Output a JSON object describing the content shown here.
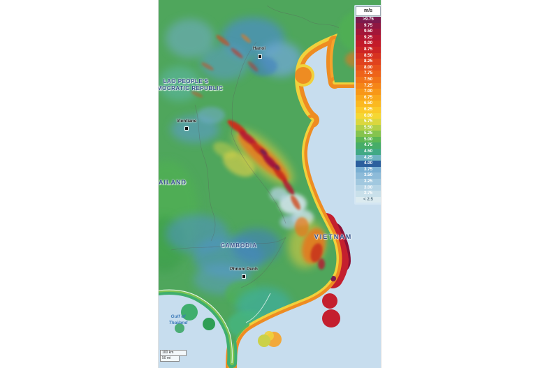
{
  "map": {
    "labels": {
      "lao_line1": "LAO PEOPLE'S",
      "lao_line2": "DEMOCRATIC REPUBLIC",
      "thailand": "THAILAND",
      "cambodia": "CAMBODIA",
      "vietnam": "VIETNAM",
      "gulf_line1": "Gulf of",
      "gulf_line2": "Thailand"
    },
    "cities": [
      "Hanoi",
      "Vientiane",
      "Phnom Penh"
    ],
    "scale_km": "100 km",
    "scale_mi": "50 mi",
    "sea_color": "#c7ddee",
    "land_base_color": "#4fa65c"
  },
  "legend": {
    "title": "m/s",
    "selected_value": "4.00",
    "entries": [
      {
        "label": ">9.75",
        "color": "#7a1a4d",
        "text_color": "#ffffff"
      },
      {
        "label": "9.75",
        "color": "#8f1742",
        "text_color": "#ffffff"
      },
      {
        "label": "9.50",
        "color": "#a31639",
        "text_color": "#ffffff"
      },
      {
        "label": "9.25",
        "color": "#b51731",
        "text_color": "#ffffff"
      },
      {
        "label": "9.00",
        "color": "#c31b2a",
        "text_color": "#ffffff"
      },
      {
        "label": "8.75",
        "color": "#cd2424",
        "text_color": "#ffffff"
      },
      {
        "label": "8.50",
        "color": "#d73220",
        "text_color": "#ffffff"
      },
      {
        "label": "8.25",
        "color": "#e0421d",
        "text_color": "#ffffff"
      },
      {
        "label": "8.00",
        "color": "#e8521b",
        "text_color": "#ffffff"
      },
      {
        "label": "7.75",
        "color": "#ee631a",
        "text_color": "#ffffff"
      },
      {
        "label": "7.50",
        "color": "#f27418",
        "text_color": "#ffffff"
      },
      {
        "label": "7.25",
        "color": "#f58517",
        "text_color": "#ffffff"
      },
      {
        "label": "7.00",
        "color": "#f89717",
        "text_color": "#ffffff"
      },
      {
        "label": "6.75",
        "color": "#faa81b",
        "text_color": "#ffffff"
      },
      {
        "label": "6.50",
        "color": "#fbb921",
        "text_color": "#ffffff"
      },
      {
        "label": "6.25",
        "color": "#fbca29",
        "text_color": "#ffffff"
      },
      {
        "label": "6.00",
        "color": "#f5d733",
        "text_color": "#ffffff"
      },
      {
        "label": "5.75",
        "color": "#dbd73e",
        "text_color": "#ffffff"
      },
      {
        "label": "5.50",
        "color": "#b2d047",
        "text_color": "#ffffff"
      },
      {
        "label": "5.25",
        "color": "#85c44e",
        "text_color": "#ffffff"
      },
      {
        "label": "5.00",
        "color": "#5cb754",
        "text_color": "#ffffff"
      },
      {
        "label": "4.75",
        "color": "#46ad68",
        "text_color": "#ffffff"
      },
      {
        "label": "4.50",
        "color": "#41a985",
        "text_color": "#ffffff"
      },
      {
        "label": "4.25",
        "color": "#6fb4c2",
        "text_color": "#ffffff"
      },
      {
        "label": "4.00",
        "color": "#2b5f9e",
        "text_color": "#ffffff"
      },
      {
        "label": "3.75",
        "color": "#79afd3",
        "text_color": "#ffffff"
      },
      {
        "label": "3.50",
        "color": "#8dbbd9",
        "text_color": "#ffffff"
      },
      {
        "label": "3.25",
        "color": "#a1c8df",
        "text_color": "#ffffff"
      },
      {
        "label": "3.00",
        "color": "#b5d4e5",
        "text_color": "#ffffff"
      },
      {
        "label": "2.75",
        "color": "#c9e0ea",
        "text_color": "#ffffff"
      },
      {
        "label": "< 2.5",
        "color": "#dcebf0",
        "text_color": "#5f7a89"
      }
    ]
  }
}
